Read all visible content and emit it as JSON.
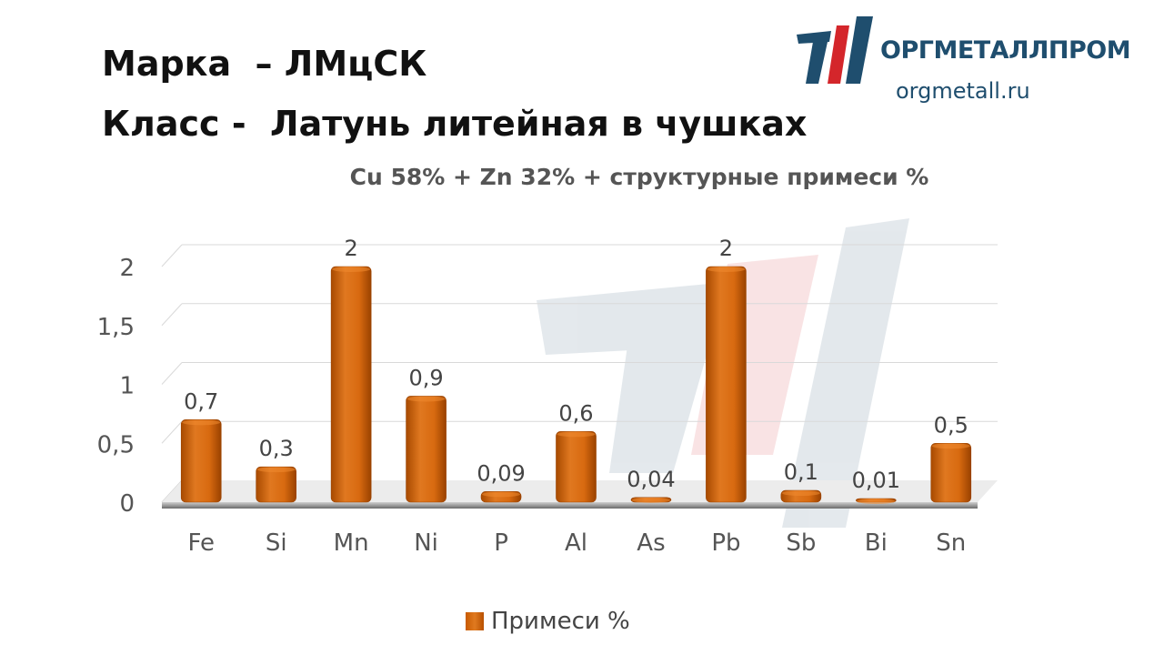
{
  "header": {
    "title_line1": "Марка  – ЛМцСК",
    "title_line2": "Класс -  Латунь литейная в чушках"
  },
  "logo": {
    "name": "ОРГМЕТАЛЛПРОМ",
    "url": "orgmetall.ru"
  },
  "colors": {
    "bar": "#d96a10",
    "bar_dark": "#a84a00",
    "brand_blue": "#1f4e6e",
    "brand_red": "#d4262b"
  },
  "chart_data": {
    "type": "bar",
    "title": "Cu 58% + Zn 32% + структурные примеси %",
    "xlabel": "",
    "ylabel": "",
    "categories": [
      "Fe",
      "Si",
      "Mn",
      "Ni",
      "P",
      "Al",
      "As",
      "Pb",
      "Sb",
      "Bi",
      "Sn"
    ],
    "series": [
      {
        "name": "Примеси %",
        "values": [
          0.7,
          0.3,
          2,
          0.9,
          0.09,
          0.6,
          0.04,
          2,
          0.1,
          0.01,
          0.5
        ],
        "value_labels": [
          "0,7",
          "0,3",
          "2",
          "0,9",
          "0,09",
          "0,6",
          "0,04",
          "2",
          "0,1",
          "0,01",
          "0,5"
        ]
      }
    ],
    "ylim": [
      0,
      2
    ],
    "yticks": [
      0,
      0.5,
      1,
      1.5,
      2
    ],
    "ytick_labels": [
      "0",
      "0,5",
      "1",
      "1,5",
      "2"
    ],
    "grid": true,
    "legend_position": "bottom"
  }
}
